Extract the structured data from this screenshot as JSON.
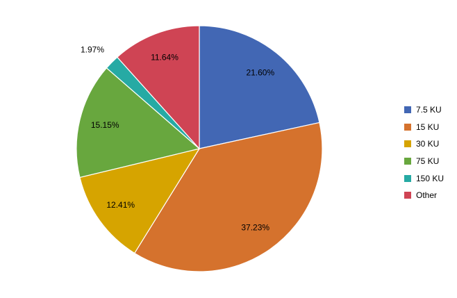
{
  "chart_data": {
    "type": "pie",
    "title": "",
    "start_angle_deg": 0,
    "direction": "clockwise",
    "legend_position": "right",
    "slices": [
      {
        "label": "7.5 KU",
        "value": 21.6,
        "data_label": "21.60%",
        "color": "#4267b4"
      },
      {
        "label": "15 KU",
        "value": 37.23,
        "data_label": "37.23%",
        "color": "#d5722d"
      },
      {
        "label": "30 KU",
        "value": 12.41,
        "data_label": "12.41%",
        "color": "#d6a400"
      },
      {
        "label": "75 KU",
        "value": 15.15,
        "data_label": "15.15%",
        "color": "#68a73e"
      },
      {
        "label": "150 KU",
        "value": 1.97,
        "data_label": "1.97%",
        "color": "#26aaa4"
      },
      {
        "label": "Other",
        "value": 11.64,
        "data_label": "11.64%",
        "color": "#cf4454"
      }
    ]
  }
}
